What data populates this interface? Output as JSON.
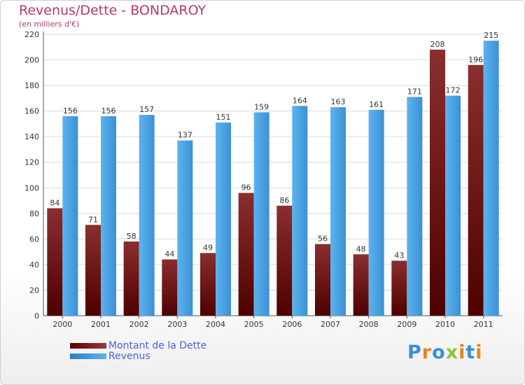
{
  "page": {
    "title": "Revenus/Dette - BONDAROY",
    "subtitle": "(en milliers d'€)",
    "brand": {
      "text": "Proxiti",
      "colors": [
        "#3a8fd8",
        "#e8841c",
        "#3a8fd8",
        "#8dc63f",
        "#e8841c",
        "#3a8fd8",
        "#e8841c"
      ]
    }
  },
  "chart_data": {
    "type": "bar",
    "categories": [
      "2000",
      "2001",
      "2002",
      "2003",
      "2004",
      "2005",
      "2006",
      "2007",
      "2008",
      "2009",
      "2010",
      "2011"
    ],
    "series": [
      {
        "name": "Montant de la Dette",
        "color": "#7a1a1a",
        "values": [
          84,
          71,
          58,
          44,
          49,
          96,
          86,
          56,
          48,
          43,
          208,
          196
        ]
      },
      {
        "name": "Revenus",
        "color": "#4ea5e4",
        "values": [
          156,
          156,
          157,
          137,
          151,
          159,
          164,
          163,
          161,
          171,
          172,
          215
        ]
      }
    ],
    "ylim": [
      0,
      220
    ],
    "yticks": [
      0,
      20,
      40,
      60,
      80,
      100,
      120,
      140,
      160,
      180,
      200,
      220
    ],
    "grid": true,
    "legend_position": "bottom-left"
  }
}
